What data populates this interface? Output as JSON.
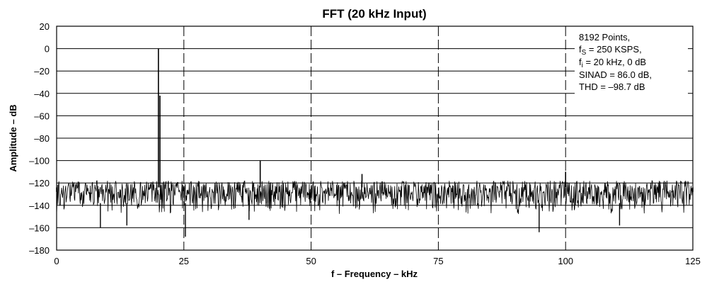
{
  "chart_data": {
    "type": "line",
    "title": "FFT (20 kHz Input)",
    "xlabel": "f – Frequency – kHz",
    "ylabel": "Amplitude – dB",
    "xlim": [
      0,
      125
    ],
    "ylim": [
      -180,
      20
    ],
    "x_ticks": [
      "0",
      "25",
      "50",
      "75",
      "100",
      "125"
    ],
    "y_ticks": [
      "20",
      "0",
      "–20",
      "–40",
      "–60",
      "–80",
      "–100",
      "–120",
      "–140",
      "–160",
      "–180"
    ],
    "grid": {
      "horizontal": "solid",
      "vertical": "dashed"
    },
    "legend": null,
    "annotation": {
      "lines": [
        {
          "text": "8192 Points,"
        },
        {
          "main": "f",
          "sub": "S",
          "rest": " = 250 KSPS,"
        },
        {
          "main": "f",
          "sub": "i",
          "rest": " = 20 kHz, 0 dB"
        },
        {
          "text": "SINAD = 86.0 dB,"
        },
        {
          "text": "THD = –98.7 dB"
        }
      ]
    },
    "noise_floor_db": [
      -148,
      -118
    ],
    "series": [
      {
        "points": [
          [
            0,
            -128
          ],
          [
            20,
            0
          ],
          [
            20.3,
            -42
          ],
          [
            40,
            -100
          ],
          [
            60,
            -112
          ],
          [
            100,
            -110
          ],
          [
            125,
            -128
          ]
        ],
        "dips": [
          [
            8.6,
            -160
          ],
          [
            13.8,
            -158
          ],
          [
            25.3,
            -168
          ],
          [
            37.8,
            -153
          ],
          [
            94.8,
            -164
          ],
          [
            110.6,
            -158
          ]
        ]
      }
    ],
    "colors": {
      "line": "#000000",
      "grid": "#000000",
      "background": "#ffffff"
    }
  }
}
